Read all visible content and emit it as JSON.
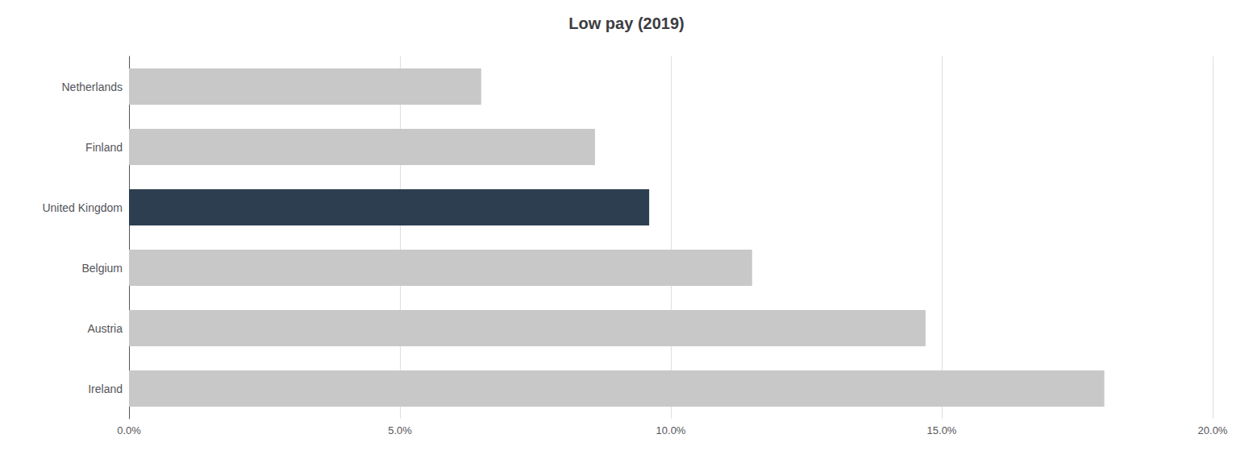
{
  "chart_data": {
    "type": "bar",
    "orientation": "horizontal",
    "title": "Low pay (2019)",
    "categories": [
      "Netherlands",
      "Finland",
      "United Kingdom",
      "Belgium",
      "Austria",
      "Ireland"
    ],
    "values": [
      6.5,
      8.6,
      9.6,
      11.5,
      14.7,
      18.0
    ],
    "colors": [
      "#c8c8c8",
      "#c8c8c8",
      "#2d3e50",
      "#c8c8c8",
      "#c8c8c8",
      "#c8c8c8"
    ],
    "xlim": [
      0,
      20.0
    ],
    "xticks": [
      {
        "value": 0,
        "label": "0.0%"
      },
      {
        "value": 5.0,
        "label": "5.0%"
      },
      {
        "value": 10.0,
        "label": "10.0%"
      },
      {
        "value": 15.0,
        "label": "15.0%"
      },
      {
        "value": 20.0,
        "label": "20.0%"
      }
    ],
    "grid": true
  }
}
